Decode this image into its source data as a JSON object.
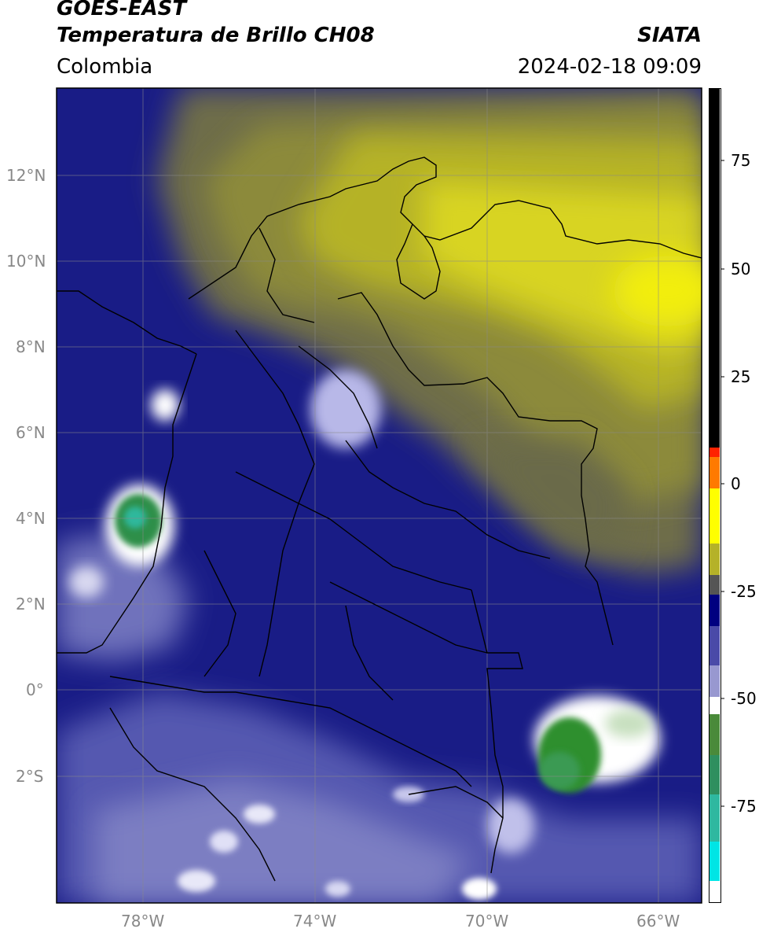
{
  "header": {
    "title_line1": "GOES-EAST",
    "title_line2": "Temperatura de Brillo CH08",
    "brand": "SIATA",
    "region": "Colombia",
    "timestamp": "2024-02-18 09:09"
  },
  "map": {
    "lat_labels": [
      "12°N",
      "10°N",
      "8°N",
      "6°N",
      "4°N",
      "2°N",
      "0°",
      "2°S"
    ],
    "lon_labels": [
      "78°W",
      "74°W",
      "70°W",
      "66°W"
    ],
    "lat_range": [
      "4.5°S",
      "14°N"
    ],
    "lon_range": [
      "80°W",
      "65°W"
    ],
    "gridlines": true
  },
  "colorbar": {
    "ticks": [
      "75",
      "50",
      "25",
      "0",
      "-25",
      "-50",
      "-75"
    ],
    "min": -95,
    "max": 90,
    "colors": {
      "black": "#000000",
      "red": "#ff2200",
      "yellow": "#ffff00",
      "olive": "#8a8a2c",
      "navy": "#000080",
      "lavender": "#9898d0",
      "white": "#ffffff",
      "green": "#2f8f2f",
      "teal": "#2fb8a0",
      "cyan": "#00e5e5"
    }
  }
}
